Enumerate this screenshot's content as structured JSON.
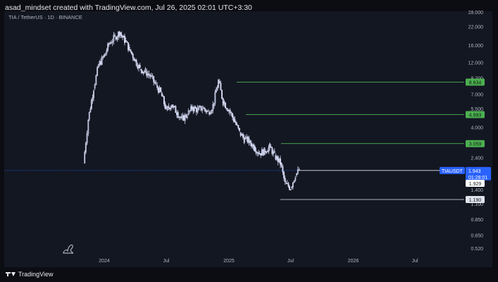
{
  "header": {
    "text": "asad_mindset created with TradingView.com, Jul 26, 2025 02:01 UTC+3:30"
  },
  "symbol": {
    "text": "TIA / TetherUS · 1D · BINANCE"
  },
  "footer": {
    "brand": "TradingView"
  },
  "colors": {
    "background": "#131722",
    "candles": "#d6dcf5",
    "levels": "#4caf50",
    "white_level": "#e0e3eb",
    "last_price": "#2962ff"
  },
  "chart_data": {
    "type": "candlestick",
    "y_scale": "log",
    "y_ticks": [
      "28.000",
      "22.000",
      "16.000",
      "12.000",
      "9.200",
      "7.000",
      "5.500",
      "4.000",
      "2.400",
      "1.400",
      "1.100",
      "0.850",
      "0.650",
      "0.520"
    ],
    "x_ticks": [
      "2024",
      "Jul",
      "2025",
      "Jul",
      "2026",
      "Jul"
    ],
    "levels": [
      {
        "value": 8.634,
        "label": "8.634",
        "color": "green"
      },
      {
        "value": 4.993,
        "label": "4.993",
        "color": "green"
      },
      {
        "value": 3.059,
        "label": "3.059",
        "color": "green"
      },
      {
        "value": 1.19,
        "label": "1.190",
        "color": "white"
      }
    ],
    "last_price": {
      "symbol": "TIAUSDT",
      "value": 1.943,
      "label": "1.943",
      "countdown": "01:28:01"
    },
    "extra_price_label": "1.929",
    "approx_close_series": [
      {
        "date": "2023-11-01",
        "close": 2.2
      },
      {
        "date": "2023-11-15",
        "close": 4.6
      },
      {
        "date": "2023-12-01",
        "close": 7.8
      },
      {
        "date": "2023-12-15",
        "close": 11.5
      },
      {
        "date": "2024-01-01",
        "close": 13.5
      },
      {
        "date": "2024-01-15",
        "close": 16.5
      },
      {
        "date": "2024-02-01",
        "close": 18.5
      },
      {
        "date": "2024-02-15",
        "close": 20.0
      },
      {
        "date": "2024-03-01",
        "close": 17.5
      },
      {
        "date": "2024-03-15",
        "close": 15.0
      },
      {
        "date": "2024-04-01",
        "close": 12.5
      },
      {
        "date": "2024-04-15",
        "close": 10.8
      },
      {
        "date": "2024-05-01",
        "close": 10.3
      },
      {
        "date": "2024-05-15",
        "close": 9.6
      },
      {
        "date": "2024-06-01",
        "close": 8.2
      },
      {
        "date": "2024-06-15",
        "close": 7.2
      },
      {
        "date": "2024-07-01",
        "close": 5.4
      },
      {
        "date": "2024-07-15",
        "close": 5.9
      },
      {
        "date": "2024-08-01",
        "close": 5.2
      },
      {
        "date": "2024-08-15",
        "close": 4.6
      },
      {
        "date": "2024-09-01",
        "close": 5.0
      },
      {
        "date": "2024-09-15",
        "close": 5.6
      },
      {
        "date": "2024-10-01",
        "close": 5.4
      },
      {
        "date": "2024-10-15",
        "close": 5.6
      },
      {
        "date": "2024-11-01",
        "close": 5.2
      },
      {
        "date": "2024-11-15",
        "close": 5.8
      },
      {
        "date": "2024-12-01",
        "close": 8.8
      },
      {
        "date": "2024-12-15",
        "close": 6.2
      },
      {
        "date": "2025-01-01",
        "close": 5.4
      },
      {
        "date": "2025-01-15",
        "close": 4.6
      },
      {
        "date": "2025-02-01",
        "close": 3.7
      },
      {
        "date": "2025-02-15",
        "close": 3.3
      },
      {
        "date": "2025-03-01",
        "close": 3.2
      },
      {
        "date": "2025-03-15",
        "close": 2.9
      },
      {
        "date": "2025-04-01",
        "close": 2.6
      },
      {
        "date": "2025-04-15",
        "close": 2.7
      },
      {
        "date": "2025-05-01",
        "close": 2.9
      },
      {
        "date": "2025-05-15",
        "close": 2.5
      },
      {
        "date": "2025-06-01",
        "close": 2.2
      },
      {
        "date": "2025-06-15",
        "close": 1.55
      },
      {
        "date": "2025-07-01",
        "close": 1.45
      },
      {
        "date": "2025-07-15",
        "close": 1.8
      },
      {
        "date": "2025-07-26",
        "close": 1.943
      }
    ]
  }
}
